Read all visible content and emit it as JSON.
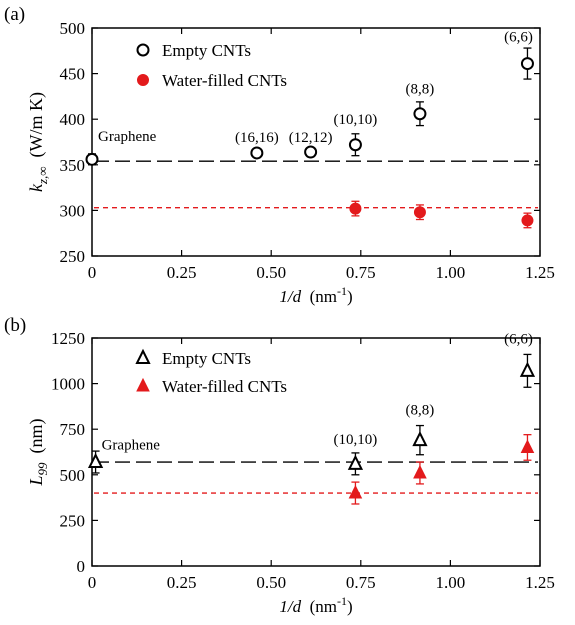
{
  "chart_data": [
    {
      "panel_label": "(a)",
      "type": "scatter",
      "ylabel": "k",
      "ylabel_sub": "z,∞",
      "ylabel_unit": "(W/m K)",
      "xlabel": "1/d",
      "xlabel_unit": "(nm",
      "xlabel_sup": "-1",
      "xlabel_close": ")",
      "xlim": [
        0,
        1.25
      ],
      "ylim": [
        250,
        500
      ],
      "xticks": [
        0,
        0.25,
        0.5,
        0.75,
        1.0,
        1.25
      ],
      "xtick_labels": [
        "0",
        "0.25",
        "0.50",
        "0.75",
        "1.00",
        "1.25"
      ],
      "yticks": [
        250,
        300,
        350,
        400,
        450,
        500
      ],
      "ytick_labels": [
        "250",
        "300",
        "350",
        "400",
        "450",
        "500"
      ],
      "legend_position": "top-left",
      "series": [
        {
          "name": "Empty CNTs",
          "marker": "circle-open",
          "color": "#000000",
          "points": [
            {
              "x": 0.0,
              "y": 356,
              "err": 6
            },
            {
              "x": 0.46,
              "y": 363,
              "err": 0
            },
            {
              "x": 0.61,
              "y": 364,
              "err": 0
            },
            {
              "x": 0.735,
              "y": 372,
              "err": 12
            },
            {
              "x": 0.915,
              "y": 406,
              "err": 13
            },
            {
              "x": 1.215,
              "y": 461,
              "err": 17
            }
          ]
        },
        {
          "name": "Water-filled CNTs",
          "marker": "circle-filled",
          "color": "#e31a1c",
          "points": [
            {
              "x": 0.735,
              "y": 302,
              "err": 8
            },
            {
              "x": 0.915,
              "y": 298,
              "err": 8
            },
            {
              "x": 1.215,
              "y": 289,
              "err": 8
            }
          ]
        }
      ],
      "reference_lines": [
        {
          "y": 354,
          "color": "#000000",
          "style": "long-dash"
        },
        {
          "y": 303,
          "color": "#e31a1c",
          "style": "short-dash"
        }
      ],
      "annotations": [
        {
          "text": "Graphene",
          "x": 0.0,
          "y": 376
        },
        {
          "text": "(16,16)",
          "x": 0.46,
          "y": 375
        },
        {
          "text": "(12,12)",
          "x": 0.61,
          "y": 375
        },
        {
          "text": "(10,10)",
          "x": 0.735,
          "y": 395
        },
        {
          "text": "(8,8)",
          "x": 0.915,
          "y": 428
        },
        {
          "text": "(6,6)",
          "x": 1.19,
          "y": 485
        }
      ]
    },
    {
      "panel_label": "(b)",
      "type": "scatter",
      "ylabel": "L",
      "ylabel_sub": "99",
      "ylabel_unit": "(nm)",
      "xlabel": "1/d",
      "xlabel_unit": "(nm",
      "xlabel_sup": "-1",
      "xlabel_close": ")",
      "xlim": [
        0,
        1.25
      ],
      "ylim": [
        0,
        1250
      ],
      "xticks": [
        0,
        0.25,
        0.5,
        0.75,
        1.0,
        1.25
      ],
      "xtick_labels": [
        "0",
        "0.25",
        "0.50",
        "0.75",
        "1.00",
        "1.25"
      ],
      "yticks": [
        0,
        250,
        500,
        750,
        1000,
        1250
      ],
      "ytick_labels": [
        "0",
        "250",
        "500",
        "750",
        "1000",
        "1250"
      ],
      "legend_position": "top-left",
      "series": [
        {
          "name": "Empty CNTs",
          "marker": "triangle-open",
          "color": "#000000",
          "points": [
            {
              "x": 0.01,
              "y": 570,
              "err": 60
            },
            {
              "x": 0.735,
              "y": 560,
              "err": 60
            },
            {
              "x": 0.915,
              "y": 690,
              "err": 80
            },
            {
              "x": 1.215,
              "y": 1070,
              "err": 90
            }
          ]
        },
        {
          "name": "Water-filled CNTs",
          "marker": "triangle-filled",
          "color": "#e31a1c",
          "points": [
            {
              "x": 0.735,
              "y": 400,
              "err": 60
            },
            {
              "x": 0.915,
              "y": 510,
              "err": 60
            },
            {
              "x": 1.215,
              "y": 650,
              "err": 70
            }
          ]
        }
      ],
      "reference_lines": [
        {
          "y": 570,
          "color": "#000000",
          "style": "long-dash"
        },
        {
          "y": 400,
          "color": "#e31a1c",
          "style": "short-dash"
        }
      ],
      "annotations": [
        {
          "text": "Graphene",
          "x": 0.01,
          "y": 640
        },
        {
          "text": "(10,10)",
          "x": 0.735,
          "y": 670
        },
        {
          "text": "(8,8)",
          "x": 0.915,
          "y": 830
        },
        {
          "text": "(6,6)",
          "x": 1.19,
          "y": 1220
        }
      ]
    }
  ]
}
